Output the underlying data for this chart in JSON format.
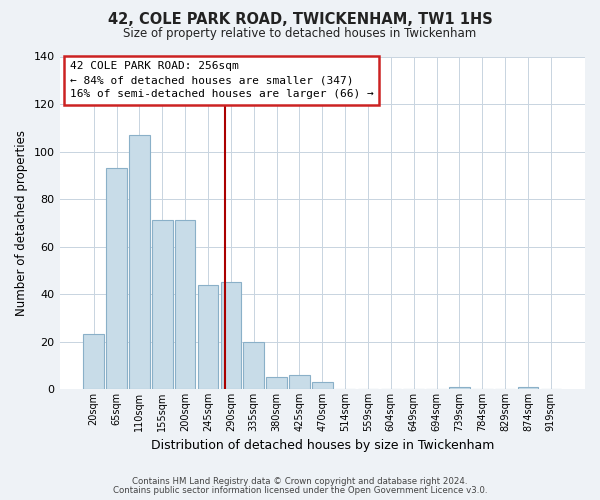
{
  "title": "42, COLE PARK ROAD, TWICKENHAM, TW1 1HS",
  "subtitle": "Size of property relative to detached houses in Twickenham",
  "xlabel": "Distribution of detached houses by size in Twickenham",
  "ylabel": "Number of detached properties",
  "bar_labels": [
    "20sqm",
    "65sqm",
    "110sqm",
    "155sqm",
    "200sqm",
    "245sqm",
    "290sqm",
    "335sqm",
    "380sqm",
    "425sqm",
    "470sqm",
    "514sqm",
    "559sqm",
    "604sqm",
    "649sqm",
    "694sqm",
    "739sqm",
    "784sqm",
    "829sqm",
    "874sqm",
    "919sqm"
  ],
  "bar_values": [
    23,
    93,
    107,
    71,
    71,
    44,
    45,
    20,
    5,
    6,
    3,
    0,
    0,
    0,
    0,
    0,
    1,
    0,
    0,
    1,
    0
  ],
  "bar_color": "#c8dce8",
  "bar_edge_color": "#8ab0c8",
  "ylim": [
    0,
    140
  ],
  "yticks": [
    0,
    20,
    40,
    60,
    80,
    100,
    120,
    140
  ],
  "vline_color": "#aa0000",
  "annotation_title": "42 COLE PARK ROAD: 256sqm",
  "annotation_line1": "← 84% of detached houses are smaller (347)",
  "annotation_line2": "16% of semi-detached houses are larger (66) →",
  "footnote1": "Contains HM Land Registry data © Crown copyright and database right 2024.",
  "footnote2": "Contains public sector information licensed under the Open Government Licence v3.0.",
  "background_color": "#eef2f6",
  "plot_bg_color": "#ffffff",
  "grid_color": "#c8d4e0"
}
